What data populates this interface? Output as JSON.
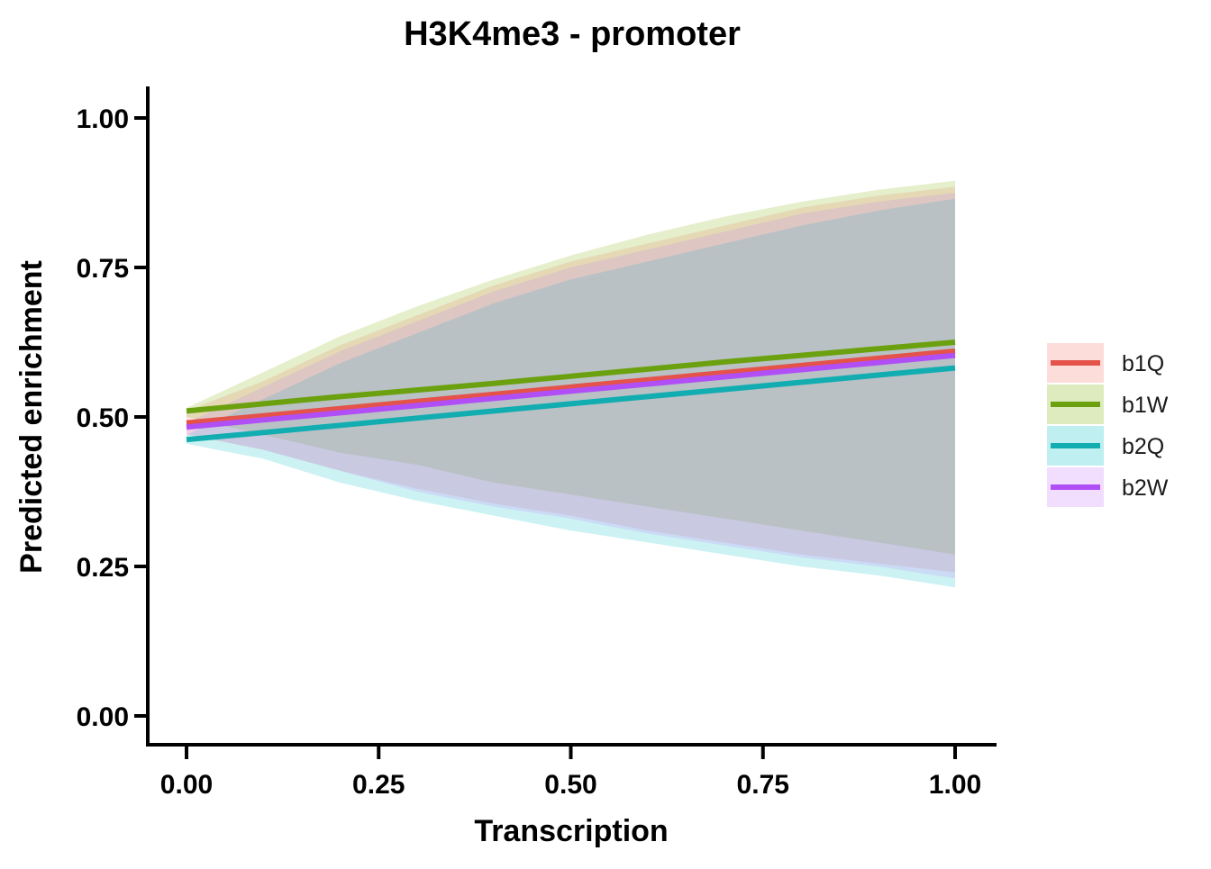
{
  "chart_data": {
    "type": "line",
    "title": "H3K4me3 - promoter",
    "xlabel": "Transcription",
    "ylabel": "Predicted enrichment",
    "xlim": [
      -0.05,
      1.05
    ],
    "ylim": [
      -0.05,
      1.05
    ],
    "x_ticks": [
      "0.00",
      "0.25",
      "0.50",
      "0.75",
      "1.00"
    ],
    "y_ticks": [
      "0.00",
      "0.25",
      "0.50",
      "0.75",
      "1.00"
    ],
    "grid": false,
    "legend_position": "right",
    "x": [
      0,
      0.1,
      0.2,
      0.3,
      0.4,
      0.5,
      0.6,
      0.7,
      0.8,
      0.9,
      1.0
    ],
    "series": [
      {
        "name": "b1Q",
        "color": "#E4524A",
        "fill": "#F8766D",
        "line": [
          0.49,
          0.502,
          0.514,
          0.526,
          0.538,
          0.55,
          0.562,
          0.574,
          0.586,
          0.598,
          0.61
        ],
        "upper": [
          0.51,
          0.56,
          0.62,
          0.67,
          0.72,
          0.76,
          0.79,
          0.82,
          0.85,
          0.87,
          0.885
        ],
        "lower": [
          0.47,
          0.445,
          0.41,
          0.38,
          0.355,
          0.335,
          0.31,
          0.29,
          0.27,
          0.255,
          0.24
        ]
      },
      {
        "name": "b1W",
        "color": "#6BA10E",
        "fill": "#7CAE00",
        "line": [
          0.51,
          0.522,
          0.534,
          0.545,
          0.556,
          0.568,
          0.58,
          0.592,
          0.603,
          0.614,
          0.625
        ],
        "upper": [
          0.515,
          0.575,
          0.635,
          0.685,
          0.73,
          0.77,
          0.805,
          0.835,
          0.86,
          0.88,
          0.895
        ],
        "lower": [
          0.5,
          0.47,
          0.44,
          0.42,
          0.39,
          0.37,
          0.35,
          0.33,
          0.31,
          0.29,
          0.27
        ]
      },
      {
        "name": "b2Q",
        "color": "#12ADB1",
        "fill": "#00BFC4",
        "line": [
          0.462,
          0.474,
          0.486,
          0.498,
          0.51,
          0.522,
          0.534,
          0.546,
          0.558,
          0.57,
          0.582
        ],
        "upper": [
          0.47,
          0.53,
          0.59,
          0.64,
          0.69,
          0.73,
          0.76,
          0.79,
          0.82,
          0.845,
          0.865
        ],
        "lower": [
          0.455,
          0.43,
          0.39,
          0.36,
          0.335,
          0.31,
          0.29,
          0.27,
          0.25,
          0.235,
          0.215
        ]
      },
      {
        "name": "b2W",
        "color": "#B04FF5",
        "fill": "#C77CFF",
        "line": [
          0.483,
          0.495,
          0.507,
          0.519,
          0.531,
          0.543,
          0.555,
          0.567,
          0.579,
          0.591,
          0.603
        ],
        "upper": [
          0.49,
          0.55,
          0.61,
          0.66,
          0.71,
          0.75,
          0.78,
          0.81,
          0.84,
          0.86,
          0.875
        ],
        "lower": [
          0.472,
          0.445,
          0.41,
          0.375,
          0.35,
          0.33,
          0.305,
          0.285,
          0.265,
          0.25,
          0.23
        ]
      }
    ]
  }
}
